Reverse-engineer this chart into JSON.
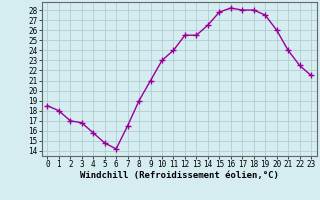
{
  "x": [
    0,
    1,
    2,
    3,
    4,
    5,
    6,
    7,
    8,
    9,
    10,
    11,
    12,
    13,
    14,
    15,
    16,
    17,
    18,
    19,
    20,
    21,
    22,
    23
  ],
  "y": [
    18.5,
    18.0,
    17.0,
    16.8,
    15.8,
    14.8,
    14.2,
    16.5,
    19.0,
    21.0,
    23.0,
    24.0,
    25.5,
    25.5,
    26.5,
    27.8,
    28.2,
    28.0,
    28.0,
    27.5,
    26.0,
    24.0,
    22.5,
    21.5
  ],
  "line_color": "#990099",
  "marker": "+",
  "marker_size": 4,
  "marker_lw": 1.0,
  "xlabel": "Windchill (Refroidissement éolien,°C)",
  "xlabel_fontsize": 6.5,
  "ylabel_ticks": [
    14,
    15,
    16,
    17,
    18,
    19,
    20,
    21,
    22,
    23,
    24,
    25,
    26,
    27,
    28
  ],
  "ylim": [
    13.5,
    28.8
  ],
  "xlim": [
    -0.5,
    23.5
  ],
  "xtick_labels": [
    "0",
    "1",
    "2",
    "3",
    "4",
    "5",
    "6",
    "7",
    "8",
    "9",
    "10",
    "11",
    "12",
    "13",
    "14",
    "15",
    "16",
    "17",
    "18",
    "19",
    "20",
    "21",
    "22",
    "23"
  ],
  "background_color": "#d5edf0",
  "grid_color": "#b0cdd0",
  "tick_fontsize": 5.5,
  "linewidth": 1.0
}
